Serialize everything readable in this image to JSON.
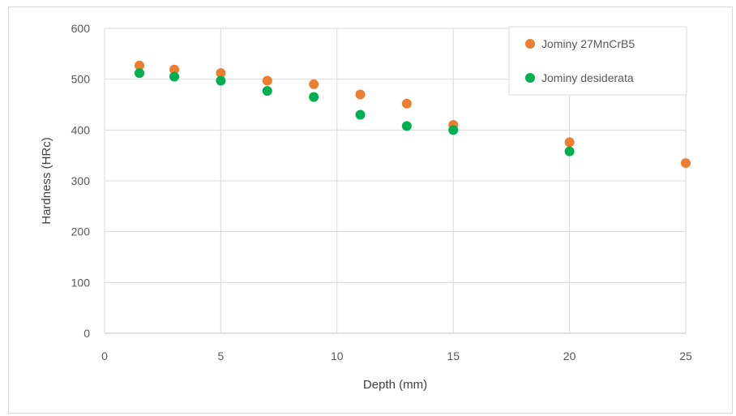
{
  "chart_data": {
    "type": "scatter",
    "title": "",
    "xlabel": "Depth (mm)",
    "ylabel": "Hardness (HRc)",
    "xlim": [
      0,
      25
    ],
    "ylim": [
      0,
      600
    ],
    "xticks": [
      0,
      5,
      10,
      15,
      20,
      25
    ],
    "yticks": [
      0,
      100,
      200,
      300,
      400,
      500,
      600
    ],
    "grid": true,
    "legend_position": "top-right",
    "series": [
      {
        "name": "Jominy 27MnCrB5",
        "color": "#ED7D31",
        "points": [
          [
            1.5,
            527
          ],
          [
            3,
            519
          ],
          [
            5,
            512
          ],
          [
            7,
            497
          ],
          [
            9,
            490
          ],
          [
            11,
            470
          ],
          [
            13,
            452
          ],
          [
            15,
            410
          ],
          [
            20,
            376
          ],
          [
            25,
            335
          ]
        ]
      },
      {
        "name": "Jominy desiderata",
        "color": "#00B050",
        "points": [
          [
            1.5,
            512
          ],
          [
            3,
            505
          ],
          [
            5,
            497
          ],
          [
            7,
            477
          ],
          [
            9,
            465
          ],
          [
            11,
            430
          ],
          [
            13,
            408
          ],
          [
            15,
            400
          ],
          [
            20,
            358
          ]
        ]
      }
    ]
  }
}
